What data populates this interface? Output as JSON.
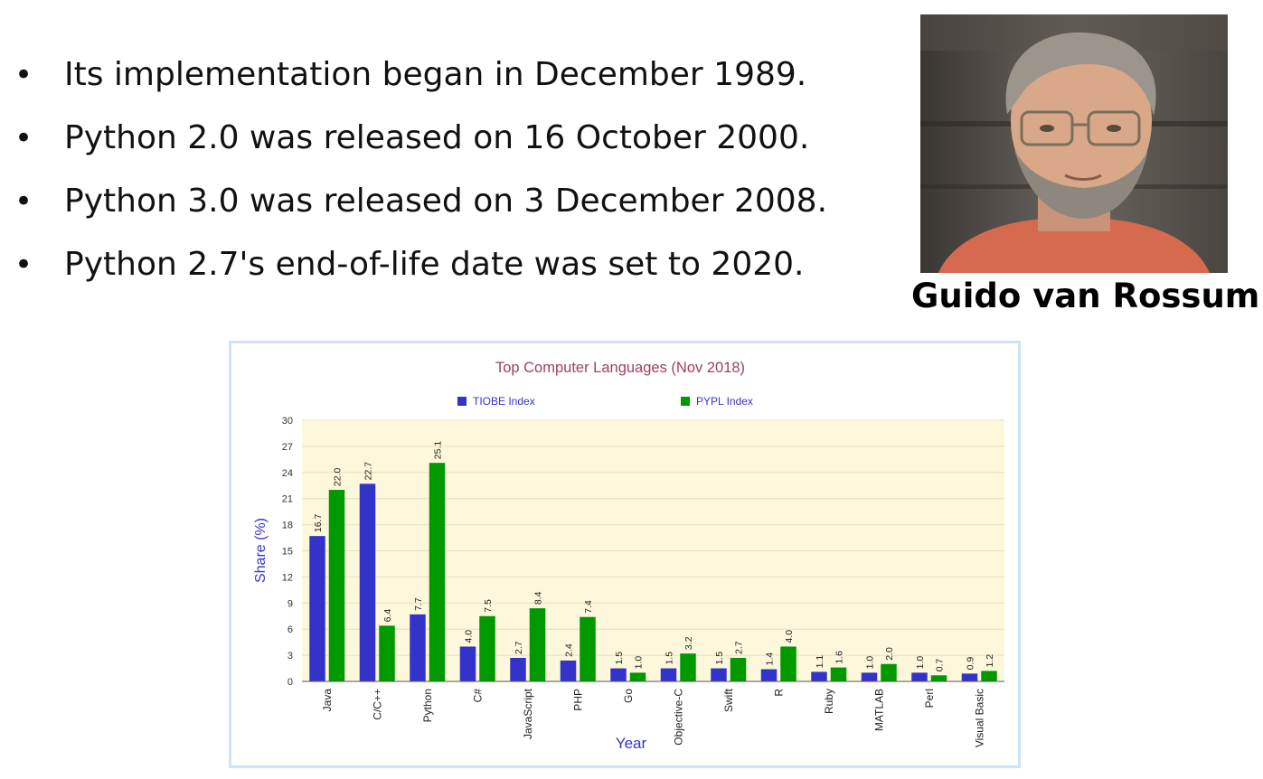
{
  "bullets": [
    {
      "marker": "•",
      "text": "Its implementation began in December 1989."
    },
    {
      "marker": "•",
      "text": "Python 2.0 was released on 16 October 2000."
    },
    {
      "marker": "•",
      "text": "Python 3.0 was released on 3 December 2008."
    },
    {
      "marker": "•",
      "text": "Python 2.7's end-of-life date was set to 2020."
    }
  ],
  "photo": {
    "caption": "Guido van Rossum"
  },
  "chart_data": {
    "type": "bar",
    "title": "Top Computer Languages (Nov 2018)",
    "xlabel": "Year",
    "ylabel": "Share (%)",
    "ylim": [
      0,
      30
    ],
    "yticks": [
      0,
      3,
      6,
      9,
      12,
      15,
      18,
      21,
      24,
      27,
      30
    ],
    "legend_position": "top",
    "grid": true,
    "categories": [
      "Java",
      "C/C++",
      "Python",
      "C#",
      "JavaScript",
      "PHP",
      "Go",
      "Objective-C",
      "Swift",
      "R",
      "Ruby",
      "MATLAB",
      "Perl",
      "Visual Basic"
    ],
    "series": [
      {
        "name": "TIOBE Index",
        "color": "#3333cc",
        "values": [
          16.7,
          22.7,
          7.7,
          4.0,
          2.7,
          2.4,
          1.5,
          1.5,
          1.5,
          1.4,
          1.1,
          1.0,
          1.0,
          0.9
        ]
      },
      {
        "name": "PYPL Index",
        "color": "#009900",
        "values": [
          22.0,
          6.4,
          25.1,
          7.5,
          8.4,
          7.4,
          1.0,
          3.2,
          2.7,
          4.0,
          1.6,
          2.0,
          0.7,
          1.2
        ]
      }
    ],
    "colors": {
      "title": "#a0405a",
      "axis_label": "#3333cc",
      "plot_background": "#fdf8dc",
      "grid": "#e6dfb8"
    }
  }
}
